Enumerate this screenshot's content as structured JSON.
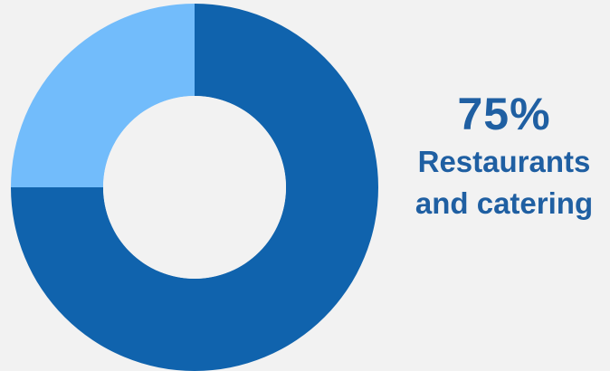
{
  "chart_data": {
    "type": "pie",
    "donut": true,
    "start": "12 o'clock",
    "direction": "clockwise",
    "categories": [
      "Restaurants and catering",
      ""
    ],
    "values": [
      75,
      25
    ],
    "colors": [
      "#1063ad",
      "#72bcfb"
    ],
    "center_color": "#f2f2f2",
    "legend": "none"
  },
  "callout": {
    "value": "75%",
    "line1": "Restaurants",
    "line2": "and catering",
    "color": "#1f5fa2"
  },
  "background": "#f2f2f2"
}
